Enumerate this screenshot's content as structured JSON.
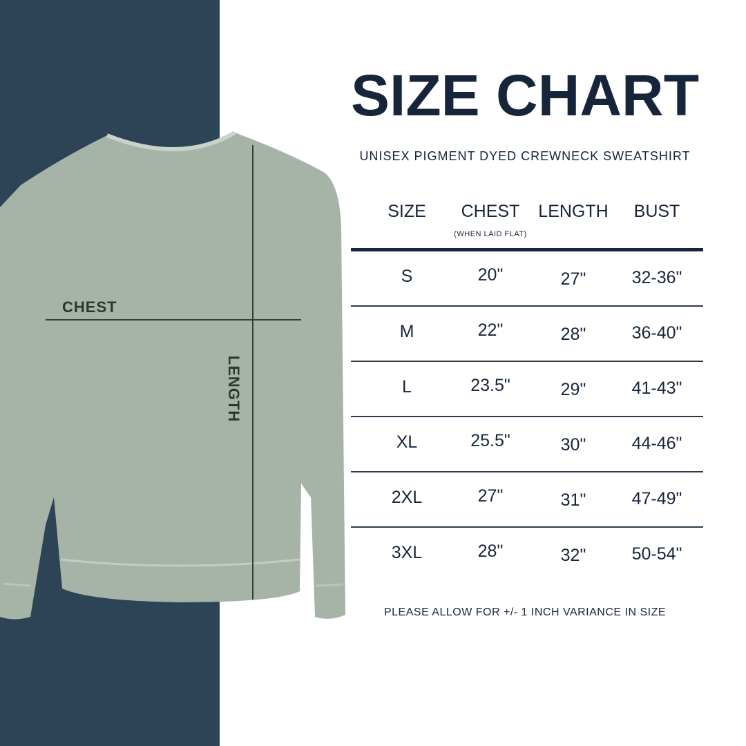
{
  "title": "SIZE CHART",
  "subtitle": "UNISEX PIGMENT DYED CREWNECK SWEATSHIRT",
  "columns": [
    "SIZE",
    "CHEST",
    "LENGTH",
    "BUST"
  ],
  "chest_note": "(WHEN LAID FLAT)",
  "rows": [
    [
      "S",
      "20\"",
      "27\"",
      "32-36\""
    ],
    [
      "M",
      "22\"",
      "28\"",
      "36-40\""
    ],
    [
      "L",
      "23.5\"",
      "29\"",
      "41-43\""
    ],
    [
      "XL",
      "25.5\"",
      "30\"",
      "44-46\""
    ],
    [
      "2XL",
      "27\"",
      "31\"",
      "47-49\""
    ],
    [
      "3XL",
      "28\"",
      "32\"",
      "50-54\""
    ]
  ],
  "footer": "PLEASE ALLOW FOR +/- 1 INCH VARIANCE IN SIZE",
  "diagram_labels": {
    "chest": "CHEST",
    "length": "LENGTH"
  },
  "colors": {
    "navy_panel": "#2d4356",
    "text": "#16253a",
    "sweatshirt": "#a6b4a8"
  }
}
